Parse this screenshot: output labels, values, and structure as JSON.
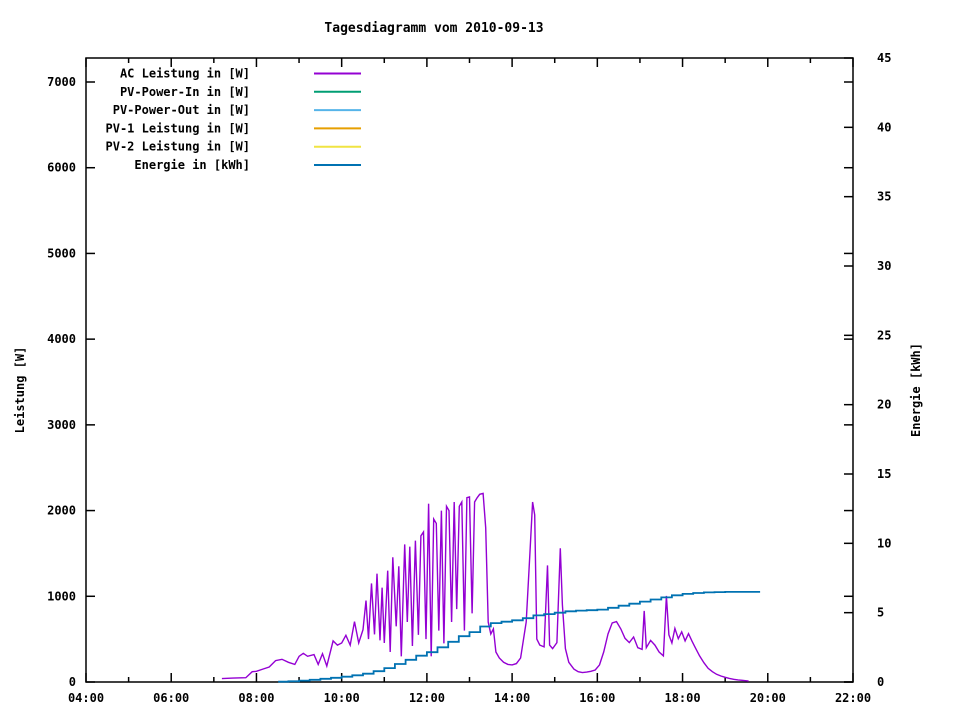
{
  "chart_data": {
    "type": "line",
    "title": "Tagesdiagramm vom 2010-09-13",
    "ylabel": "Leistung [W]",
    "y2label": "Energie [kWh]",
    "grid": false,
    "legend_position": "top-left-inside",
    "x_axis": {
      "min_hours": 4,
      "max_hours": 22,
      "minor_tick_every_hours": 1,
      "label_every_hours": 2,
      "tick_labels": [
        "04:00",
        "06:00",
        "08:00",
        "10:00",
        "12:00",
        "14:00",
        "16:00",
        "18:00",
        "20:00",
        "22:00"
      ]
    },
    "y_axis": {
      "min": 0,
      "max": 7000,
      "tick_step": 1000,
      "tick_labels": [
        "0",
        "1000",
        "2000",
        "3000",
        "4000",
        "5000",
        "6000",
        "7000"
      ]
    },
    "y2_axis": {
      "min": 0,
      "max": 45,
      "tick_step": 5,
      "tick_labels": [
        "0",
        "5",
        "10",
        "15",
        "20",
        "25",
        "30",
        "35",
        "40",
        "45"
      ]
    },
    "series": [
      {
        "name": "AC Leistung in [W]",
        "color": "#9400d3",
        "axis": "y1",
        "style": "line",
        "data": [
          [
            7.19,
            40
          ],
          [
            7.45,
            45
          ],
          [
            7.75,
            50
          ],
          [
            7.9,
            120
          ],
          [
            8.0,
            125
          ],
          [
            8.15,
            150
          ],
          [
            8.3,
            175
          ],
          [
            8.45,
            250
          ],
          [
            8.6,
            265
          ],
          [
            8.75,
            230
          ],
          [
            8.9,
            205
          ],
          [
            9.0,
            300
          ],
          [
            9.1,
            335
          ],
          [
            9.2,
            300
          ],
          [
            9.35,
            320
          ],
          [
            9.45,
            205
          ],
          [
            9.55,
            330
          ],
          [
            9.65,
            185
          ],
          [
            9.8,
            480
          ],
          [
            9.9,
            430
          ],
          [
            10.0,
            455
          ],
          [
            10.1,
            545
          ],
          [
            10.2,
            430
          ],
          [
            10.3,
            705
          ],
          [
            10.4,
            455
          ],
          [
            10.5,
            610
          ],
          [
            10.57,
            950
          ],
          [
            10.63,
            500
          ],
          [
            10.7,
            1150
          ],
          [
            10.77,
            555
          ],
          [
            10.83,
            1265
          ],
          [
            10.9,
            485
          ],
          [
            10.95,
            1100
          ],
          [
            11.0,
            455
          ],
          [
            11.08,
            1300
          ],
          [
            11.14,
            350
          ],
          [
            11.2,
            1455
          ],
          [
            11.28,
            650
          ],
          [
            11.34,
            1350
          ],
          [
            11.4,
            300
          ],
          [
            11.48,
            1605
          ],
          [
            11.54,
            700
          ],
          [
            11.6,
            1580
          ],
          [
            11.66,
            420
          ],
          [
            11.73,
            1650
          ],
          [
            11.8,
            550
          ],
          [
            11.86,
            1705
          ],
          [
            11.92,
            1750
          ],
          [
            11.98,
            500
          ],
          [
            12.04,
            2080
          ],
          [
            12.1,
            300
          ],
          [
            12.16,
            1900
          ],
          [
            12.22,
            1850
          ],
          [
            12.28,
            600
          ],
          [
            12.34,
            2000
          ],
          [
            12.4,
            450
          ],
          [
            12.46,
            2050
          ],
          [
            12.52,
            2000
          ],
          [
            12.58,
            700
          ],
          [
            12.64,
            2100
          ],
          [
            12.7,
            850
          ],
          [
            12.76,
            2050
          ],
          [
            12.82,
            2100
          ],
          [
            12.88,
            600
          ],
          [
            12.94,
            2150
          ],
          [
            13.0,
            2160
          ],
          [
            13.06,
            800
          ],
          [
            13.12,
            2100
          ],
          [
            13.18,
            2150
          ],
          [
            13.24,
            2190
          ],
          [
            13.32,
            2200
          ],
          [
            13.38,
            1800
          ],
          [
            13.44,
            700
          ],
          [
            13.5,
            560
          ],
          [
            13.56,
            620
          ],
          [
            13.62,
            350
          ],
          [
            13.7,
            280
          ],
          [
            13.8,
            230
          ],
          [
            13.9,
            205
          ],
          [
            14.0,
            200
          ],
          [
            14.1,
            215
          ],
          [
            14.2,
            280
          ],
          [
            14.33,
            700
          ],
          [
            14.42,
            1520
          ],
          [
            14.48,
            2100
          ],
          [
            14.53,
            1950
          ],
          [
            14.58,
            500
          ],
          [
            14.65,
            430
          ],
          [
            14.75,
            410
          ],
          [
            14.83,
            1360
          ],
          [
            14.88,
            430
          ],
          [
            14.95,
            390
          ],
          [
            15.05,
            460
          ],
          [
            15.13,
            1560
          ],
          [
            15.18,
            900
          ],
          [
            15.25,
            390
          ],
          [
            15.33,
            230
          ],
          [
            15.45,
            150
          ],
          [
            15.55,
            120
          ],
          [
            15.65,
            110
          ],
          [
            15.75,
            115
          ],
          [
            15.85,
            125
          ],
          [
            15.95,
            140
          ],
          [
            16.05,
            200
          ],
          [
            16.15,
            350
          ],
          [
            16.25,
            560
          ],
          [
            16.35,
            690
          ],
          [
            16.45,
            705
          ],
          [
            16.55,
            620
          ],
          [
            16.65,
            510
          ],
          [
            16.75,
            460
          ],
          [
            16.85,
            525
          ],
          [
            16.95,
            400
          ],
          [
            17.05,
            380
          ],
          [
            17.1,
            830
          ],
          [
            17.15,
            400
          ],
          [
            17.25,
            485
          ],
          [
            17.35,
            430
          ],
          [
            17.45,
            350
          ],
          [
            17.55,
            305
          ],
          [
            17.62,
            1005
          ],
          [
            17.68,
            550
          ],
          [
            17.75,
            455
          ],
          [
            17.82,
            625
          ],
          [
            17.9,
            505
          ],
          [
            17.98,
            585
          ],
          [
            18.06,
            480
          ],
          [
            18.14,
            565
          ],
          [
            18.22,
            480
          ],
          [
            18.3,
            400
          ],
          [
            18.4,
            305
          ],
          [
            18.5,
            225
          ],
          [
            18.6,
            160
          ],
          [
            18.7,
            120
          ],
          [
            18.8,
            90
          ],
          [
            18.9,
            70
          ],
          [
            19.0,
            55
          ],
          [
            19.1,
            42
          ],
          [
            19.2,
            32
          ],
          [
            19.3,
            25
          ],
          [
            19.4,
            20
          ],
          [
            19.5,
            14
          ],
          [
            19.55,
            10
          ]
        ]
      },
      {
        "name": "PV-Power-In in [W]",
        "color": "#009e73",
        "axis": "y1",
        "style": "line",
        "data": []
      },
      {
        "name": "PV-Power-Out in [W]",
        "color": "#56b4e9",
        "axis": "y1",
        "style": "line",
        "data": []
      },
      {
        "name": "PV-1 Leistung in [W]",
        "color": "#e69f00",
        "axis": "y1",
        "style": "line",
        "data": []
      },
      {
        "name": "PV-2 Leistung in [W]",
        "color": "#f0e442",
        "axis": "y1",
        "style": "line",
        "data": []
      },
      {
        "name": "Energie in [kWh]",
        "color": "#0072b2",
        "axis": "y2",
        "style": "steps",
        "data": [
          [
            8.51,
            0.02
          ],
          [
            8.75,
            0.05
          ],
          [
            9.0,
            0.1
          ],
          [
            9.25,
            0.16
          ],
          [
            9.5,
            0.23
          ],
          [
            9.75,
            0.3
          ],
          [
            10.0,
            0.38
          ],
          [
            10.25,
            0.48
          ],
          [
            10.5,
            0.6
          ],
          [
            10.75,
            0.78
          ],
          [
            11.0,
            1.0
          ],
          [
            11.25,
            1.3
          ],
          [
            11.5,
            1.6
          ],
          [
            11.75,
            1.9
          ],
          [
            12.0,
            2.15
          ],
          [
            12.25,
            2.5
          ],
          [
            12.5,
            2.9
          ],
          [
            12.75,
            3.3
          ],
          [
            13.0,
            3.6
          ],
          [
            13.25,
            4.0
          ],
          [
            13.5,
            4.25
          ],
          [
            13.75,
            4.35
          ],
          [
            14.0,
            4.45
          ],
          [
            14.25,
            4.6
          ],
          [
            14.5,
            4.8
          ],
          [
            14.75,
            4.9
          ],
          [
            15.0,
            5.0
          ],
          [
            15.25,
            5.1
          ],
          [
            15.5,
            5.15
          ],
          [
            15.75,
            5.18
          ],
          [
            16.0,
            5.22
          ],
          [
            16.25,
            5.35
          ],
          [
            16.5,
            5.5
          ],
          [
            16.75,
            5.65
          ],
          [
            17.0,
            5.8
          ],
          [
            17.25,
            5.95
          ],
          [
            17.5,
            6.1
          ],
          [
            17.75,
            6.25
          ],
          [
            18.0,
            6.35
          ],
          [
            18.25,
            6.42
          ],
          [
            18.5,
            6.46
          ],
          [
            18.75,
            6.48
          ],
          [
            19.0,
            6.5
          ],
          [
            19.3,
            6.5
          ],
          [
            19.6,
            6.5
          ],
          [
            19.82,
            6.5
          ]
        ]
      }
    ]
  }
}
